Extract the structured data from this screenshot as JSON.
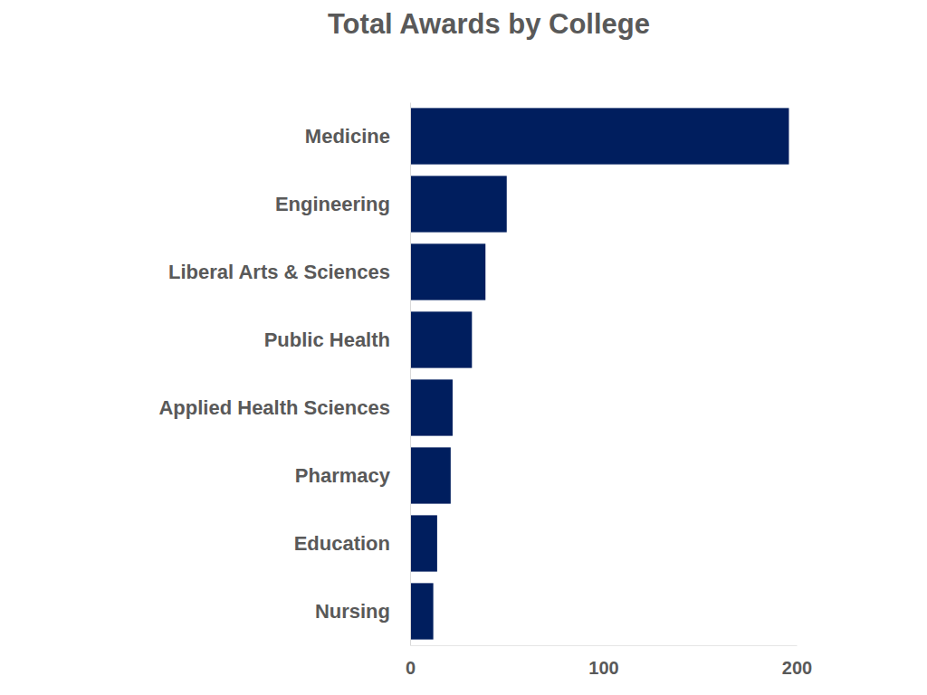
{
  "chart_data": {
    "type": "bar",
    "title": "Total Awards  by College",
    "orientation": "horizontal",
    "categories": [
      "Medicine",
      "Engineering",
      "Liberal Arts & Sciences",
      "Public Health",
      "Applied Health Sciences",
      "Pharmacy",
      "Education",
      "Nursing"
    ],
    "values": [
      196,
      50,
      39,
      32,
      22,
      21,
      14,
      12
    ],
    "color": "#001e5e",
    "xlim": [
      0,
      200
    ],
    "xticks": [
      0,
      100,
      200
    ],
    "grid": false
  }
}
